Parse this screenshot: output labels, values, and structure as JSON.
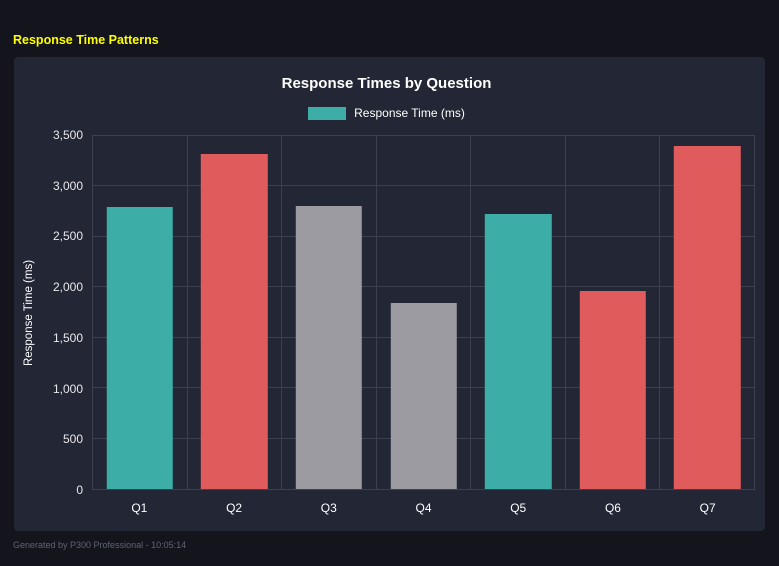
{
  "page": {
    "title": "Response Time Patterns",
    "footer": "Generated by P300 Professional - 10:05:14"
  },
  "colors": {
    "background": "#14141d",
    "panel": "#232634",
    "grid": "#3c4152",
    "title_yellow": "#ffff00",
    "teal": "#3cada7",
    "red": "#e05c5c",
    "gray": "#9b9ba1",
    "text": "#ffffff",
    "footer_text": "#5f6372"
  },
  "chart_data": {
    "type": "bar",
    "title": "Response Times by Question",
    "legend": {
      "label": "Response Time (ms)",
      "color": "#3cada7"
    },
    "categories": [
      "Q1",
      "Q2",
      "Q3",
      "Q4",
      "Q5",
      "Q6",
      "Q7"
    ],
    "values": [
      2800,
      3320,
      2810,
      1840,
      2730,
      1960,
      3400
    ],
    "bar_colors": [
      "#3cada7",
      "#e05c5c",
      "#9b9ba1",
      "#9b9ba1",
      "#3cada7",
      "#e05c5c",
      "#e05c5c"
    ],
    "xlabel": "",
    "ylabel": "Response Time (ms)",
    "ylim": [
      0,
      3500
    ],
    "yticks": [
      0,
      500,
      1000,
      1500,
      2000,
      2500,
      3000,
      3500
    ],
    "ytick_labels": [
      "0",
      "500",
      "1,000",
      "1,500",
      "2,000",
      "2,500",
      "3,000",
      "3,500"
    ],
    "grid": true,
    "legend_position": "top"
  }
}
